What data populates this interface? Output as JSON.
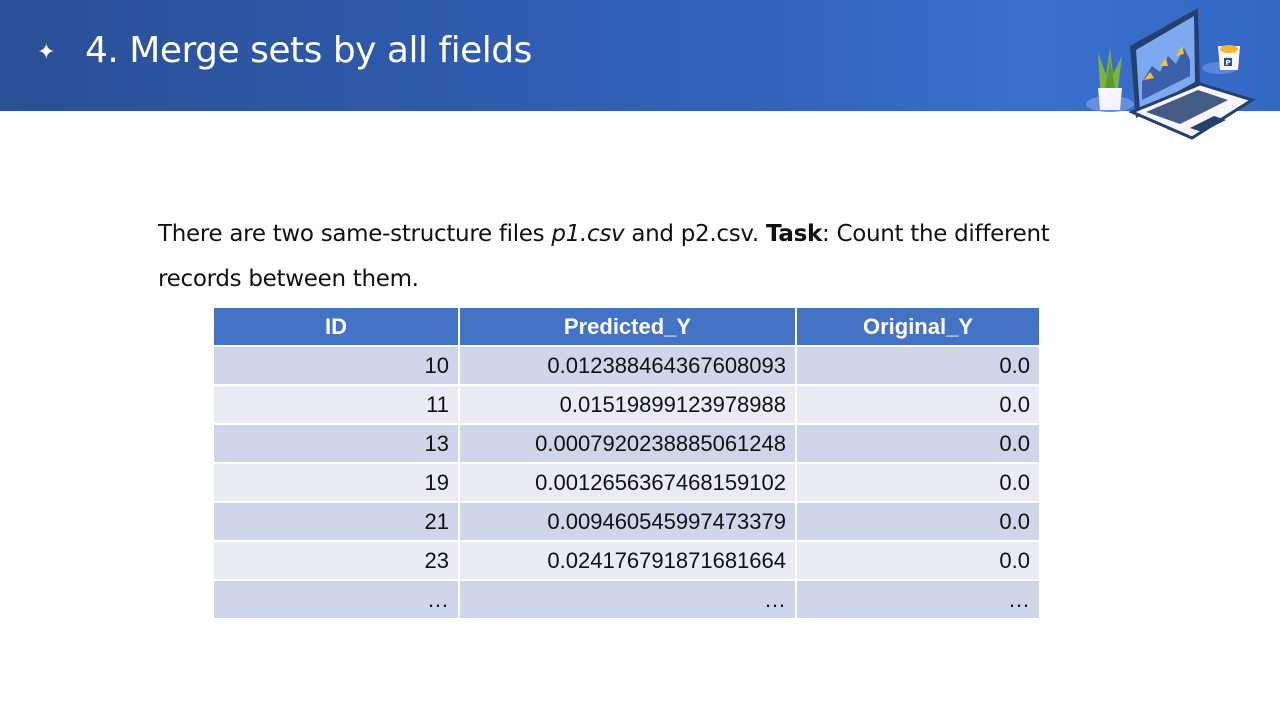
{
  "header": {
    "bullet_icon": "sparkle-star-icon",
    "title": "4. Merge sets by all fields",
    "illustration": "laptop-with-chart-plant-and-mug",
    "mug_logo": "P"
  },
  "body": {
    "text_1": "There are two same-structure files ",
    "file_1": "p1.csv",
    "text_2": " and p2.csv.  ",
    "task_label": "Task",
    "text_3": ": Count the different records between them."
  },
  "table": {
    "headers": [
      "ID",
      "Predicted_Y",
      "Original_Y"
    ],
    "rows": [
      [
        "10",
        "0.012388464367608093",
        "0.0"
      ],
      [
        "11",
        "0.01519899123978988",
        "0.0"
      ],
      [
        "13",
        "0.0007920238885061248",
        "0.0"
      ],
      [
        "19",
        "0.0012656367468159102",
        "0.0"
      ],
      [
        "21",
        "0.009460545997473379",
        "0.0"
      ],
      [
        "23",
        "0.024176791871681664",
        "0.0"
      ],
      [
        "…",
        "…",
        "…"
      ]
    ],
    "colors": {
      "header": "#4472c4",
      "row_odd": "#cfd5ea",
      "row_even": "#e9ebf5"
    }
  }
}
